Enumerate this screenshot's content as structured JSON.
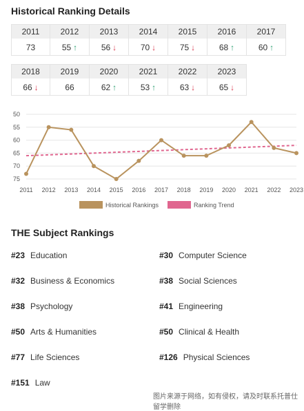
{
  "historical": {
    "title": "Historical Ranking Details",
    "row1": [
      {
        "year": "2011",
        "rank": "73",
        "trend": ""
      },
      {
        "year": "2012",
        "rank": "55",
        "trend": "up"
      },
      {
        "year": "2013",
        "rank": "56",
        "trend": "down"
      },
      {
        "year": "2014",
        "rank": "70",
        "trend": "down"
      },
      {
        "year": "2015",
        "rank": "75",
        "trend": "down"
      },
      {
        "year": "2016",
        "rank": "68",
        "trend": "up"
      },
      {
        "year": "2017",
        "rank": "60",
        "trend": "up"
      }
    ],
    "row2": [
      {
        "year": "2018",
        "rank": "66",
        "trend": "down"
      },
      {
        "year": "2019",
        "rank": "66",
        "trend": ""
      },
      {
        "year": "2020",
        "rank": "62",
        "trend": "up"
      },
      {
        "year": "2021",
        "rank": "53",
        "trend": "up"
      },
      {
        "year": "2022",
        "rank": "63",
        "trend": "down"
      },
      {
        "year": "2023",
        "rank": "65",
        "trend": "down"
      }
    ]
  },
  "chart_data": {
    "type": "line",
    "x": [
      "2011",
      "2012",
      "2013",
      "2014",
      "2015",
      "2016",
      "2017",
      "2018",
      "2019",
      "2020",
      "2021",
      "2022",
      "2023"
    ],
    "series": [
      {
        "name": "Historical Rankings",
        "values": [
          73,
          55,
          56,
          70,
          75,
          68,
          60,
          66,
          66,
          62,
          53,
          63,
          65
        ],
        "color": "#b9935e"
      },
      {
        "name": "Ranking Trend",
        "values": [
          66,
          62
        ],
        "x": [
          "2011",
          "2023"
        ],
        "color": "#e0668f",
        "style": "dashed"
      }
    ],
    "yticks": [
      "50",
      "55",
      "60",
      "65",
      "70",
      "75"
    ],
    "ylim": [
      50,
      75
    ],
    "y_inverted": true,
    "grid": true,
    "legend_position": "bottom"
  },
  "subjects": {
    "title": "THE Subject Rankings",
    "items": [
      {
        "rank": "#23",
        "name": "Education"
      },
      {
        "rank": "#30",
        "name": "Computer Science"
      },
      {
        "rank": "#32",
        "name": "Business & Economics"
      },
      {
        "rank": "#38",
        "name": "Social Sciences"
      },
      {
        "rank": "#38",
        "name": "Psychology"
      },
      {
        "rank": "#41",
        "name": "Engineering"
      },
      {
        "rank": "#50",
        "name": "Arts & Humanities"
      },
      {
        "rank": "#50",
        "name": "Clinical & Health"
      },
      {
        "rank": "#77",
        "name": "Life Sciences"
      },
      {
        "rank": "#126",
        "name": "Physical Sciences"
      },
      {
        "rank": "#151",
        "name": "Law"
      }
    ]
  },
  "watermark": "图片来源于网络，如有侵权，请及时联系托普仕留学删除",
  "colors": {
    "up": "#2a9d6f",
    "down": "#d9344a",
    "line": "#b9935e",
    "trend": "#e0668f"
  }
}
